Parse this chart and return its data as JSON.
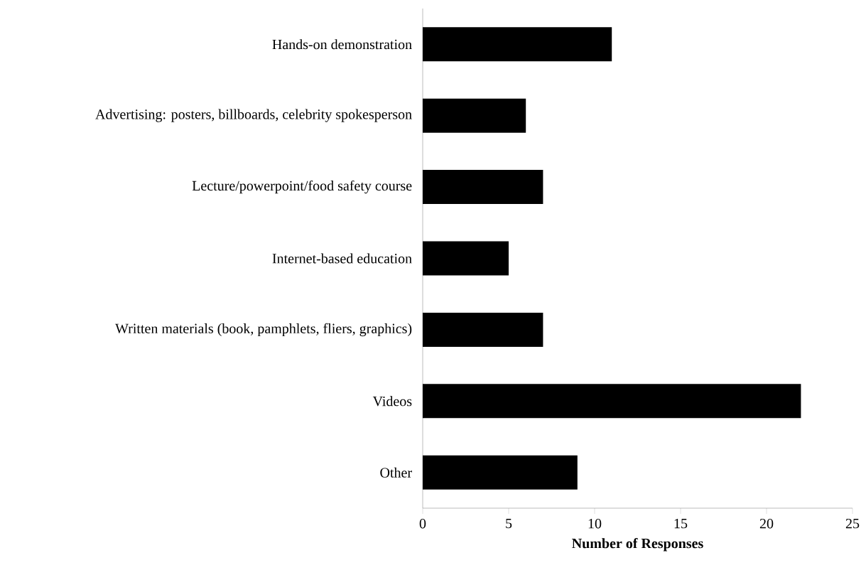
{
  "chart_data": {
    "type": "bar",
    "orientation": "horizontal",
    "xlabel": "Number of Responses",
    "categories": [
      "Hands-on demonstration",
      "Advertising: posters, billboards, celebrity spokesperson",
      "Lecture/powerpoint/food safety course",
      "Internet-based education",
      "Written materials (book, pamphlets, fliers, graphics)",
      "Videos",
      "Other"
    ],
    "values": [
      11,
      6,
      7,
      5,
      7,
      22,
      9
    ],
    "color": "#000000",
    "xlim": [
      0,
      25
    ],
    "xticks": [
      0,
      5,
      10,
      15,
      20,
      25
    ]
  }
}
